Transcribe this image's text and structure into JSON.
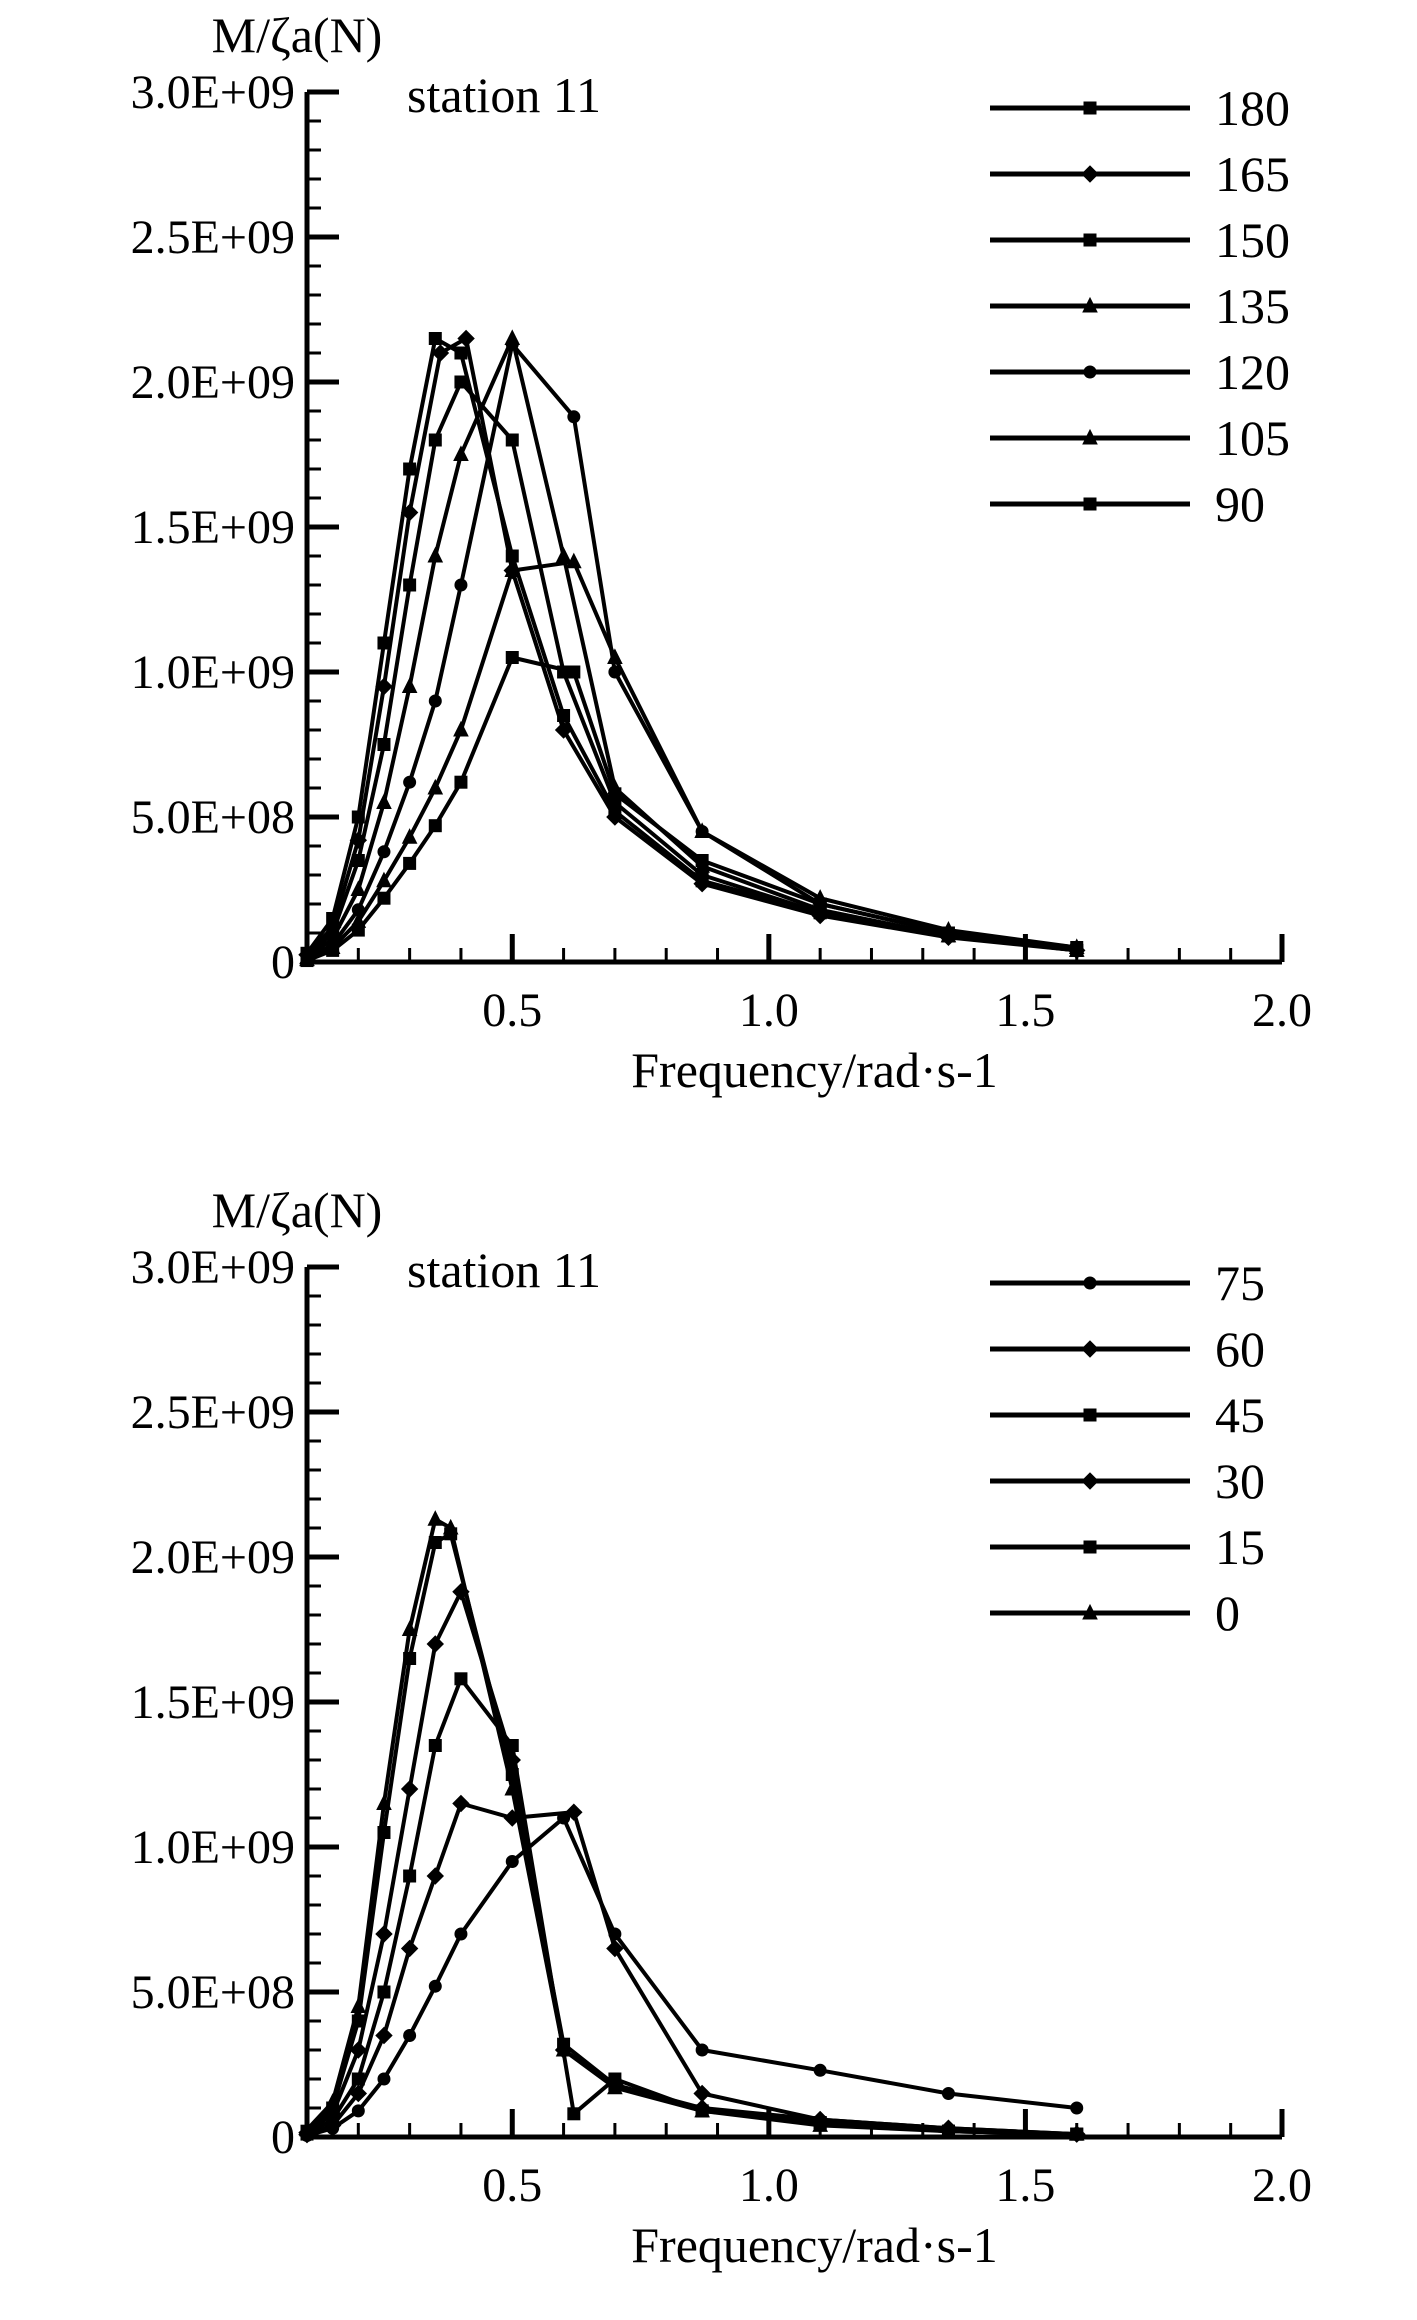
{
  "chart_data": [
    {
      "type": "line",
      "title": "station 11",
      "ylabel": "M/ζa(N)",
      "xlabel": "Frequency/rad·s-1",
      "xlim": [
        0.1,
        2.0
      ],
      "ylim": [
        0,
        3000000000
      ],
      "xticks": [
        "0.5",
        "1.0",
        "1.5",
        "2.0"
      ],
      "yticks": [
        "0",
        "5.0E+08",
        "1.0E+09",
        "1.5E+09",
        "2.0E+09",
        "2.5E+09",
        "3.0E+09"
      ],
      "legend_position": "top-right",
      "series": [
        {
          "name": "180",
          "x": [
            0.1,
            0.15,
            0.2,
            0.25,
            0.3,
            0.35,
            0.4,
            0.5,
            0.6,
            0.7,
            0.87,
            1.1,
            1.35,
            1.6
          ],
          "y": [
            30000000,
            150000000,
            500000000,
            1100000000,
            1700000000,
            2150000000,
            2100000000,
            1400000000,
            850000000,
            520000000,
            280000000,
            170000000,
            90000000,
            40000000
          ]
        },
        {
          "name": "165",
          "x": [
            0.1,
            0.15,
            0.2,
            0.25,
            0.3,
            0.36,
            0.41,
            0.5,
            0.6,
            0.7,
            0.87,
            1.1,
            1.35,
            1.6
          ],
          "y": [
            25000000,
            120000000,
            420000000,
            950000000,
            1550000000,
            2100000000,
            2150000000,
            1350000000,
            800000000,
            500000000,
            270000000,
            160000000,
            85000000,
            40000000
          ]
        },
        {
          "name": "150",
          "x": [
            0.1,
            0.15,
            0.2,
            0.25,
            0.3,
            0.35,
            0.4,
            0.5,
            0.6,
            0.7,
            0.87,
            1.1,
            1.35,
            1.6
          ],
          "y": [
            20000000,
            100000000,
            350000000,
            750000000,
            1300000000,
            1800000000,
            2000000000,
            1800000000,
            1000000000,
            550000000,
            300000000,
            170000000,
            90000000,
            40000000
          ]
        },
        {
          "name": "135",
          "x": [
            0.1,
            0.15,
            0.2,
            0.25,
            0.3,
            0.35,
            0.4,
            0.5,
            0.6,
            0.7,
            0.87,
            1.1,
            1.35,
            1.6
          ],
          "y": [
            15000000,
            80000000,
            250000000,
            550000000,
            950000000,
            1400000000,
            1750000000,
            2150000000,
            1400000000,
            600000000,
            330000000,
            180000000,
            90000000,
            40000000
          ]
        },
        {
          "name": "120",
          "x": [
            0.1,
            0.15,
            0.2,
            0.25,
            0.3,
            0.35,
            0.4,
            0.5,
            0.62,
            0.7,
            0.87,
            1.1,
            1.35,
            1.6
          ],
          "y": [
            10000000,
            60000000,
            180000000,
            380000000,
            620000000,
            900000000,
            1300000000,
            2130000000,
            1880000000,
            1000000000,
            450000000,
            200000000,
            100000000,
            50000000
          ]
        },
        {
          "name": "105",
          "x": [
            0.1,
            0.15,
            0.2,
            0.25,
            0.3,
            0.35,
            0.4,
            0.5,
            0.62,
            0.7,
            0.87,
            1.1,
            1.35,
            1.6
          ],
          "y": [
            8000000,
            50000000,
            140000000,
            280000000,
            430000000,
            600000000,
            800000000,
            1350000000,
            1380000000,
            1050000000,
            450000000,
            220000000,
            110000000,
            50000000
          ]
        },
        {
          "name": "90",
          "x": [
            0.1,
            0.15,
            0.2,
            0.25,
            0.3,
            0.35,
            0.4,
            0.5,
            0.62,
            0.7,
            0.87,
            1.1,
            1.35,
            1.6
          ],
          "y": [
            5000000,
            40000000,
            110000000,
            220000000,
            340000000,
            470000000,
            620000000,
            1050000000,
            1000000000,
            580000000,
            350000000,
            200000000,
            100000000,
            50000000
          ]
        }
      ]
    },
    {
      "type": "line",
      "title": "station 11",
      "ylabel": "M/ζa(N)",
      "xlabel": "Frequency/rad·s-1",
      "xlim": [
        0.1,
        2.0
      ],
      "ylim": [
        0,
        3000000000
      ],
      "xticks": [
        "0.5",
        "1.0",
        "1.5",
        "2.0"
      ],
      "yticks": [
        "0",
        "5.0E+08",
        "1.0E+09",
        "1.5E+09",
        "2.0E+09",
        "2.5E+09",
        "3.0E+09"
      ],
      "legend_position": "top-right",
      "series": [
        {
          "name": "75",
          "x": [
            0.1,
            0.15,
            0.2,
            0.25,
            0.3,
            0.35,
            0.4,
            0.5,
            0.6,
            0.7,
            0.87,
            1.1,
            1.35,
            1.6
          ],
          "y": [
            5000000,
            30000000,
            90000000,
            200000000,
            350000000,
            520000000,
            700000000,
            950000000,
            1100000000,
            700000000,
            300000000,
            230000000,
            150000000,
            100000000
          ]
        },
        {
          "name": "60",
          "x": [
            0.1,
            0.15,
            0.2,
            0.25,
            0.3,
            0.35,
            0.4,
            0.5,
            0.62,
            0.7,
            0.87,
            1.1,
            1.35,
            1.6
          ],
          "y": [
            8000000,
            40000000,
            150000000,
            350000000,
            650000000,
            900000000,
            1150000000,
            1100000000,
            1120000000,
            650000000,
            150000000,
            60000000,
            30000000,
            10000000
          ]
        },
        {
          "name": "45",
          "x": [
            0.1,
            0.15,
            0.2,
            0.25,
            0.3,
            0.35,
            0.4,
            0.5,
            0.62,
            0.7,
            0.87,
            1.1,
            1.35,
            1.6
          ],
          "y": [
            10000000,
            60000000,
            200000000,
            500000000,
            900000000,
            1350000000,
            1580000000,
            1350000000,
            80000000,
            200000000,
            90000000,
            50000000,
            20000000,
            10000000
          ]
        },
        {
          "name": "30",
          "x": [
            0.1,
            0.15,
            0.2,
            0.25,
            0.3,
            0.35,
            0.4,
            0.5,
            0.6,
            0.7,
            0.87,
            1.1,
            1.35,
            1.6
          ],
          "y": [
            15000000,
            80000000,
            300000000,
            700000000,
            1200000000,
            1700000000,
            1880000000,
            1300000000,
            300000000,
            180000000,
            100000000,
            60000000,
            30000000,
            10000000
          ]
        },
        {
          "name": "15",
          "x": [
            0.1,
            0.15,
            0.2,
            0.25,
            0.3,
            0.35,
            0.38,
            0.5,
            0.6,
            0.7,
            0.87,
            1.1,
            1.35,
            1.6
          ],
          "y": [
            20000000,
            100000000,
            400000000,
            1050000000,
            1650000000,
            2050000000,
            2080000000,
            1250000000,
            320000000,
            180000000,
            90000000,
            50000000,
            20000000,
            10000000
          ]
        },
        {
          "name": "0",
          "x": [
            0.1,
            0.15,
            0.2,
            0.25,
            0.3,
            0.35,
            0.38,
            0.5,
            0.6,
            0.7,
            0.87,
            1.1,
            1.35,
            1.6
          ],
          "y": [
            25000000,
            120000000,
            450000000,
            1150000000,
            1750000000,
            2130000000,
            2100000000,
            1200000000,
            300000000,
            170000000,
            90000000,
            40000000,
            20000000,
            10000000
          ]
        }
      ]
    }
  ]
}
